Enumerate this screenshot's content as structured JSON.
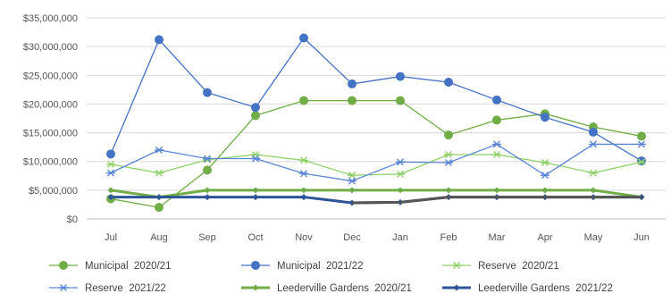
{
  "chart_data": {
    "type": "line",
    "title": "",
    "xlabel": "",
    "ylabel": "",
    "categories": [
      "Jul",
      "Aug",
      "Sep",
      "Oct",
      "Nov",
      "Dec",
      "Jan",
      "Feb",
      "Mar",
      "Apr",
      "May",
      "Jun"
    ],
    "ylim": [
      0,
      35000000
    ],
    "y_ticks": [
      0,
      5000000,
      10000000,
      15000000,
      20000000,
      25000000,
      30000000,
      35000000
    ],
    "y_tick_labels": [
      "$0",
      "$5,000,000",
      "$10,000,000",
      "$15,000,000",
      "$20,000,000",
      "$25,000,000",
      "$30,000,000",
      "$35,000,000"
    ],
    "grid": "horizontal",
    "legend_position": "bottom",
    "series": [
      {
        "name": "Municipal  2020/21",
        "color": "#70ad47",
        "marker": "circle",
        "values": [
          3500000,
          2000000,
          8500000,
          18000000,
          20600000,
          20600000,
          20600000,
          14600000,
          17200000,
          18300000,
          16000000,
          14400000
        ]
      },
      {
        "name": "Municipal  2021/22",
        "color": "#4472c4",
        "marker": "circle",
        "values": [
          11300000,
          31200000,
          22000000,
          19400000,
          31500000,
          23500000,
          24800000,
          23800000,
          20700000,
          17700000,
          15100000,
          10100000
        ]
      },
      {
        "name": "Reserve  2020/21",
        "color": "#8fd16a",
        "marker": "asterisk",
        "values": [
          9500000,
          8000000,
          10300000,
          11200000,
          10200000,
          7600000,
          7800000,
          11200000,
          11200000,
          9800000,
          8000000,
          9900000
        ]
      },
      {
        "name": "Reserve  2021/22",
        "color": "#5b86d6",
        "marker": "asterisk",
        "values": [
          8000000,
          12000000,
          10500000,
          10500000,
          7900000,
          6600000,
          9900000,
          9800000,
          13000000,
          7600000,
          13000000,
          13000000
        ]
      },
      {
        "name": "Leederville Gardens  2020/21",
        "color": "#70ad47",
        "marker": "diamond",
        "width": 3,
        "values": [
          5000000,
          3800000,
          5000000,
          5000000,
          5000000,
          5000000,
          5000000,
          5000000,
          5000000,
          5000000,
          5000000,
          3800000
        ]
      },
      {
        "name": "Leederville Gardens  2021/22",
        "color": "#2e5597",
        "marker": "diamond",
        "width": 3,
        "values": [
          3800000,
          3800000,
          3800000,
          3800000,
          3800000,
          2800000,
          2900000,
          3800000,
          3800000,
          3800000,
          3800000,
          3800000
        ]
      }
    ],
    "extra_line": {
      "color": "#555555",
      "width": 3,
      "values": [
        null,
        null,
        null,
        null,
        null,
        2800000,
        2900000,
        3800000,
        3800000,
        3800000,
        3800000,
        3800000
      ]
    }
  }
}
